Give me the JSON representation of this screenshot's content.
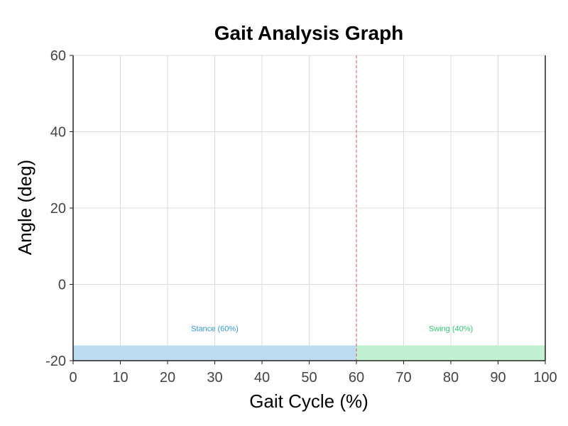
{
  "chart_data": {
    "type": "area",
    "title": "Gait Analysis Graph",
    "xlabel": "Gait Cycle (%)",
    "ylabel": "Angle (deg)",
    "xlim": [
      0,
      100
    ],
    "ylim": [
      -20,
      60
    ],
    "x_ticks": [
      0,
      10,
      20,
      30,
      40,
      50,
      60,
      70,
      80,
      90,
      100
    ],
    "y_ticks": [
      -20,
      0,
      20,
      40,
      60
    ],
    "grid": true,
    "series": [],
    "phase_boundary": {
      "x": 60,
      "color": "#d9534f",
      "style": "dashed"
    },
    "phases": [
      {
        "label": "Stance (60%)",
        "x_start": 0,
        "x_end": 60,
        "y_start": -20,
        "y_end": -16,
        "fill_color": "#bcdcf2",
        "label_color": "#3498db",
        "label_y": -12.3
      },
      {
        "label": "Swing (40%)",
        "x_start": 60,
        "x_end": 100,
        "y_start": -20,
        "y_end": -16,
        "fill_color": "#c2f0d2",
        "label_color": "#2ecc71",
        "label_y": -12.3
      }
    ]
  }
}
